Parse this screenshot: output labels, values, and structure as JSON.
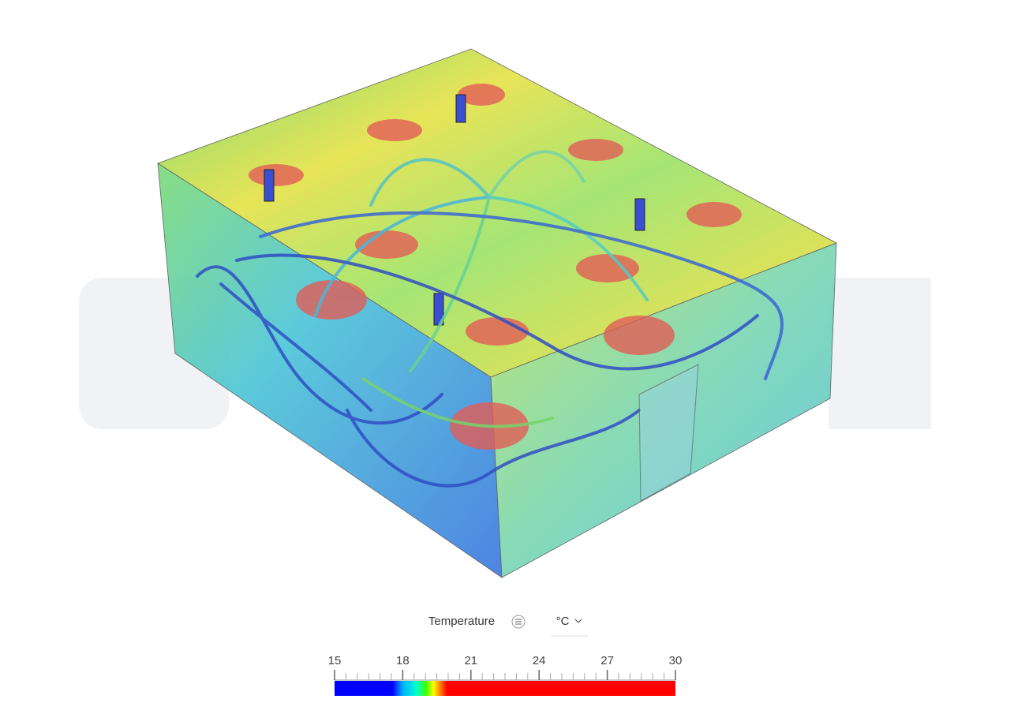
{
  "legend": {
    "title": "Temperature",
    "unit": "°C",
    "ticks": [
      15,
      18,
      21,
      24,
      27,
      30
    ]
  }
}
